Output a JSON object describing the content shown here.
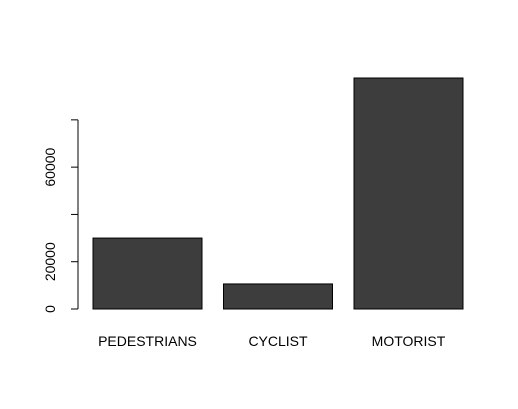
{
  "chart_data": {
    "type": "bar",
    "categories": [
      "PEDESTRIANS",
      "CYCLIST",
      "MOTORIST"
    ],
    "values": [
      30000,
      10600,
      97700
    ],
    "color": "#3d3d3d",
    "ylim": [
      0,
      97700
    ],
    "yticks": [
      0,
      20000,
      {
        "value": 40000,
        "label": null
      },
      60000,
      {
        "value": 80000,
        "label": null
      }
    ]
  }
}
